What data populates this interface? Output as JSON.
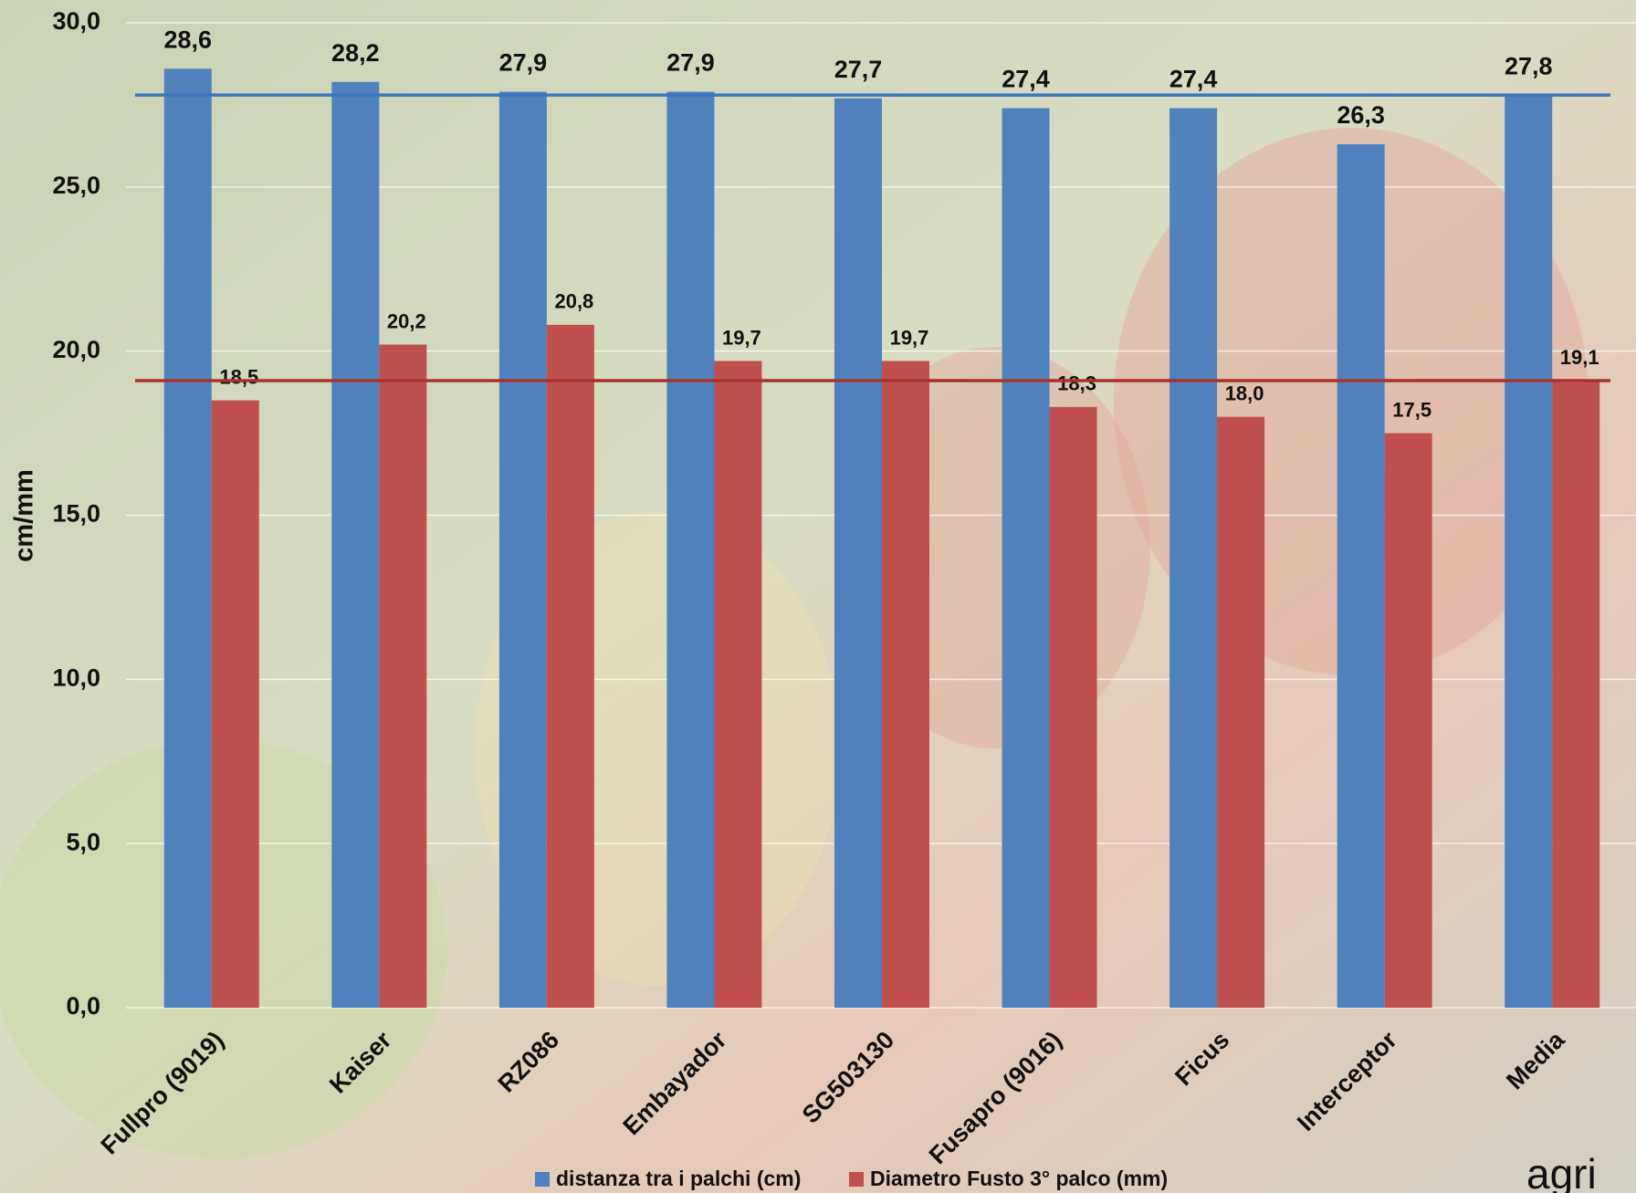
{
  "chart_data": {
    "type": "bar",
    "y_label": "cm/mm",
    "categories": [
      "Fullpro (9019)",
      "Kaiser",
      "RZ086",
      "Embayador",
      "SG503130",
      "Fusapro (9016)",
      "Ficus",
      "Interceptor",
      "Media"
    ],
    "series": [
      {
        "name": "distanza tra i palchi (cm)",
        "color": "#4f81bd",
        "values": [
          28.6,
          28.2,
          27.9,
          27.9,
          27.7,
          27.4,
          27.4,
          26.3,
          27.8
        ],
        "value_labels": [
          "28,6",
          "28,2",
          "27,9",
          "27,9",
          "27,7",
          "27,4",
          "27,4",
          "26,3",
          "27,8"
        ]
      },
      {
        "name": "Diametro Fusto 3° palco (mm)",
        "color": "#c0504d",
        "values": [
          18.5,
          20.2,
          20.8,
          19.7,
          19.7,
          18.3,
          18.0,
          17.5,
          19.1
        ],
        "value_labels": [
          "18,5",
          "20,2",
          "20,8",
          "19,7",
          "19,7",
          "18,3",
          "18,0",
          "17,5",
          "19,1"
        ]
      }
    ],
    "ylim": [
      0,
      30
    ],
    "yticks": [
      {
        "value": 0,
        "label": "0,0"
      },
      {
        "value": 5,
        "label": "5,0"
      },
      {
        "value": 10,
        "label": "10,0"
      },
      {
        "value": 15,
        "label": "15,0"
      },
      {
        "value": 20,
        "label": "20,0"
      },
      {
        "value": 25,
        "label": "25,0"
      },
      {
        "value": 30,
        "label": "30,0"
      }
    ],
    "grid": true,
    "legend": "bottom",
    "logo": "agri"
  }
}
